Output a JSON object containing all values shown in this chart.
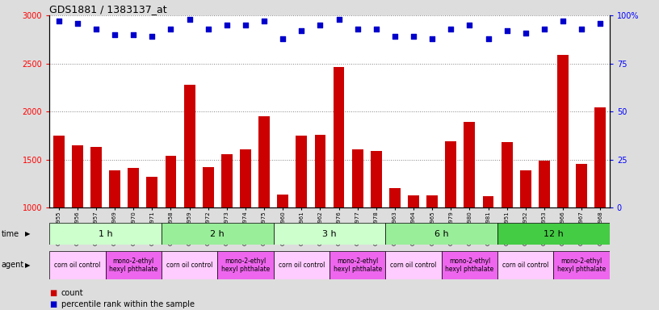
{
  "title": "GDS1881 / 1383137_at",
  "samples": [
    "GSM100955",
    "GSM100956",
    "GSM100957",
    "GSM100969",
    "GSM100970",
    "GSM100971",
    "GSM100958",
    "GSM100959",
    "GSM100972",
    "GSM100973",
    "GSM100974",
    "GSM100975",
    "GSM100960",
    "GSM100961",
    "GSM100962",
    "GSM100976",
    "GSM100977",
    "GSM100978",
    "GSM100963",
    "GSM100964",
    "GSM100965",
    "GSM100979",
    "GSM100980",
    "GSM100981",
    "GSM100951",
    "GSM100952",
    "GSM100953",
    "GSM100966",
    "GSM100967",
    "GSM100968"
  ],
  "counts": [
    1750,
    1650,
    1630,
    1390,
    1410,
    1320,
    1540,
    2280,
    1420,
    1560,
    1610,
    1950,
    1140,
    1750,
    1760,
    2460,
    1610,
    1590,
    1200,
    1130,
    1130,
    1690,
    1890,
    1120,
    1680,
    1390,
    1490,
    2590,
    1460,
    2040
  ],
  "percentiles": [
    97,
    96,
    93,
    90,
    90,
    89,
    93,
    98,
    93,
    95,
    95,
    97,
    88,
    92,
    95,
    98,
    93,
    93,
    89,
    89,
    88,
    93,
    95,
    88,
    92,
    91,
    93,
    97,
    93,
    96
  ],
  "time_groups": [
    {
      "label": "1 h",
      "start": 0,
      "end": 6,
      "color": "#ccffcc"
    },
    {
      "label": "2 h",
      "start": 6,
      "end": 12,
      "color": "#99ee99"
    },
    {
      "label": "3 h",
      "start": 12,
      "end": 18,
      "color": "#ccffcc"
    },
    {
      "label": "6 h",
      "start": 18,
      "end": 24,
      "color": "#99ee99"
    },
    {
      "label": "12 h",
      "start": 24,
      "end": 30,
      "color": "#44cc44"
    }
  ],
  "agent_groups": [
    {
      "label": "corn oil control",
      "start": 0,
      "end": 3,
      "color": "#ffccff"
    },
    {
      "label": "mono-2-ethyl\nhexyl phthalate",
      "start": 3,
      "end": 6,
      "color": "#ee66ee"
    },
    {
      "label": "corn oil control",
      "start": 6,
      "end": 9,
      "color": "#ffccff"
    },
    {
      "label": "mono-2-ethyl\nhexyl phthalate",
      "start": 9,
      "end": 12,
      "color": "#ee66ee"
    },
    {
      "label": "corn oil control",
      "start": 12,
      "end": 15,
      "color": "#ffccff"
    },
    {
      "label": "mono-2-ethyl\nhexyl phthalate",
      "start": 15,
      "end": 18,
      "color": "#ee66ee"
    },
    {
      "label": "corn oil control",
      "start": 18,
      "end": 21,
      "color": "#ffccff"
    },
    {
      "label": "mono-2-ethyl\nhexyl phthalate",
      "start": 21,
      "end": 24,
      "color": "#ee66ee"
    },
    {
      "label": "corn oil control",
      "start": 24,
      "end": 27,
      "color": "#ffccff"
    },
    {
      "label": "mono-2-ethyl\nhexyl phthalate",
      "start": 27,
      "end": 30,
      "color": "#ee66ee"
    }
  ],
  "bar_color": "#cc0000",
  "dot_color": "#0000cc",
  "ylim_left": [
    1000,
    3000
  ],
  "ylim_right": [
    0,
    100
  ],
  "yticks_left": [
    1000,
    1500,
    2000,
    2500,
    3000
  ],
  "yticks_right": [
    0,
    25,
    50,
    75,
    100
  ],
  "bg_color": "#dddddd",
  "plot_bg": "#ffffff"
}
